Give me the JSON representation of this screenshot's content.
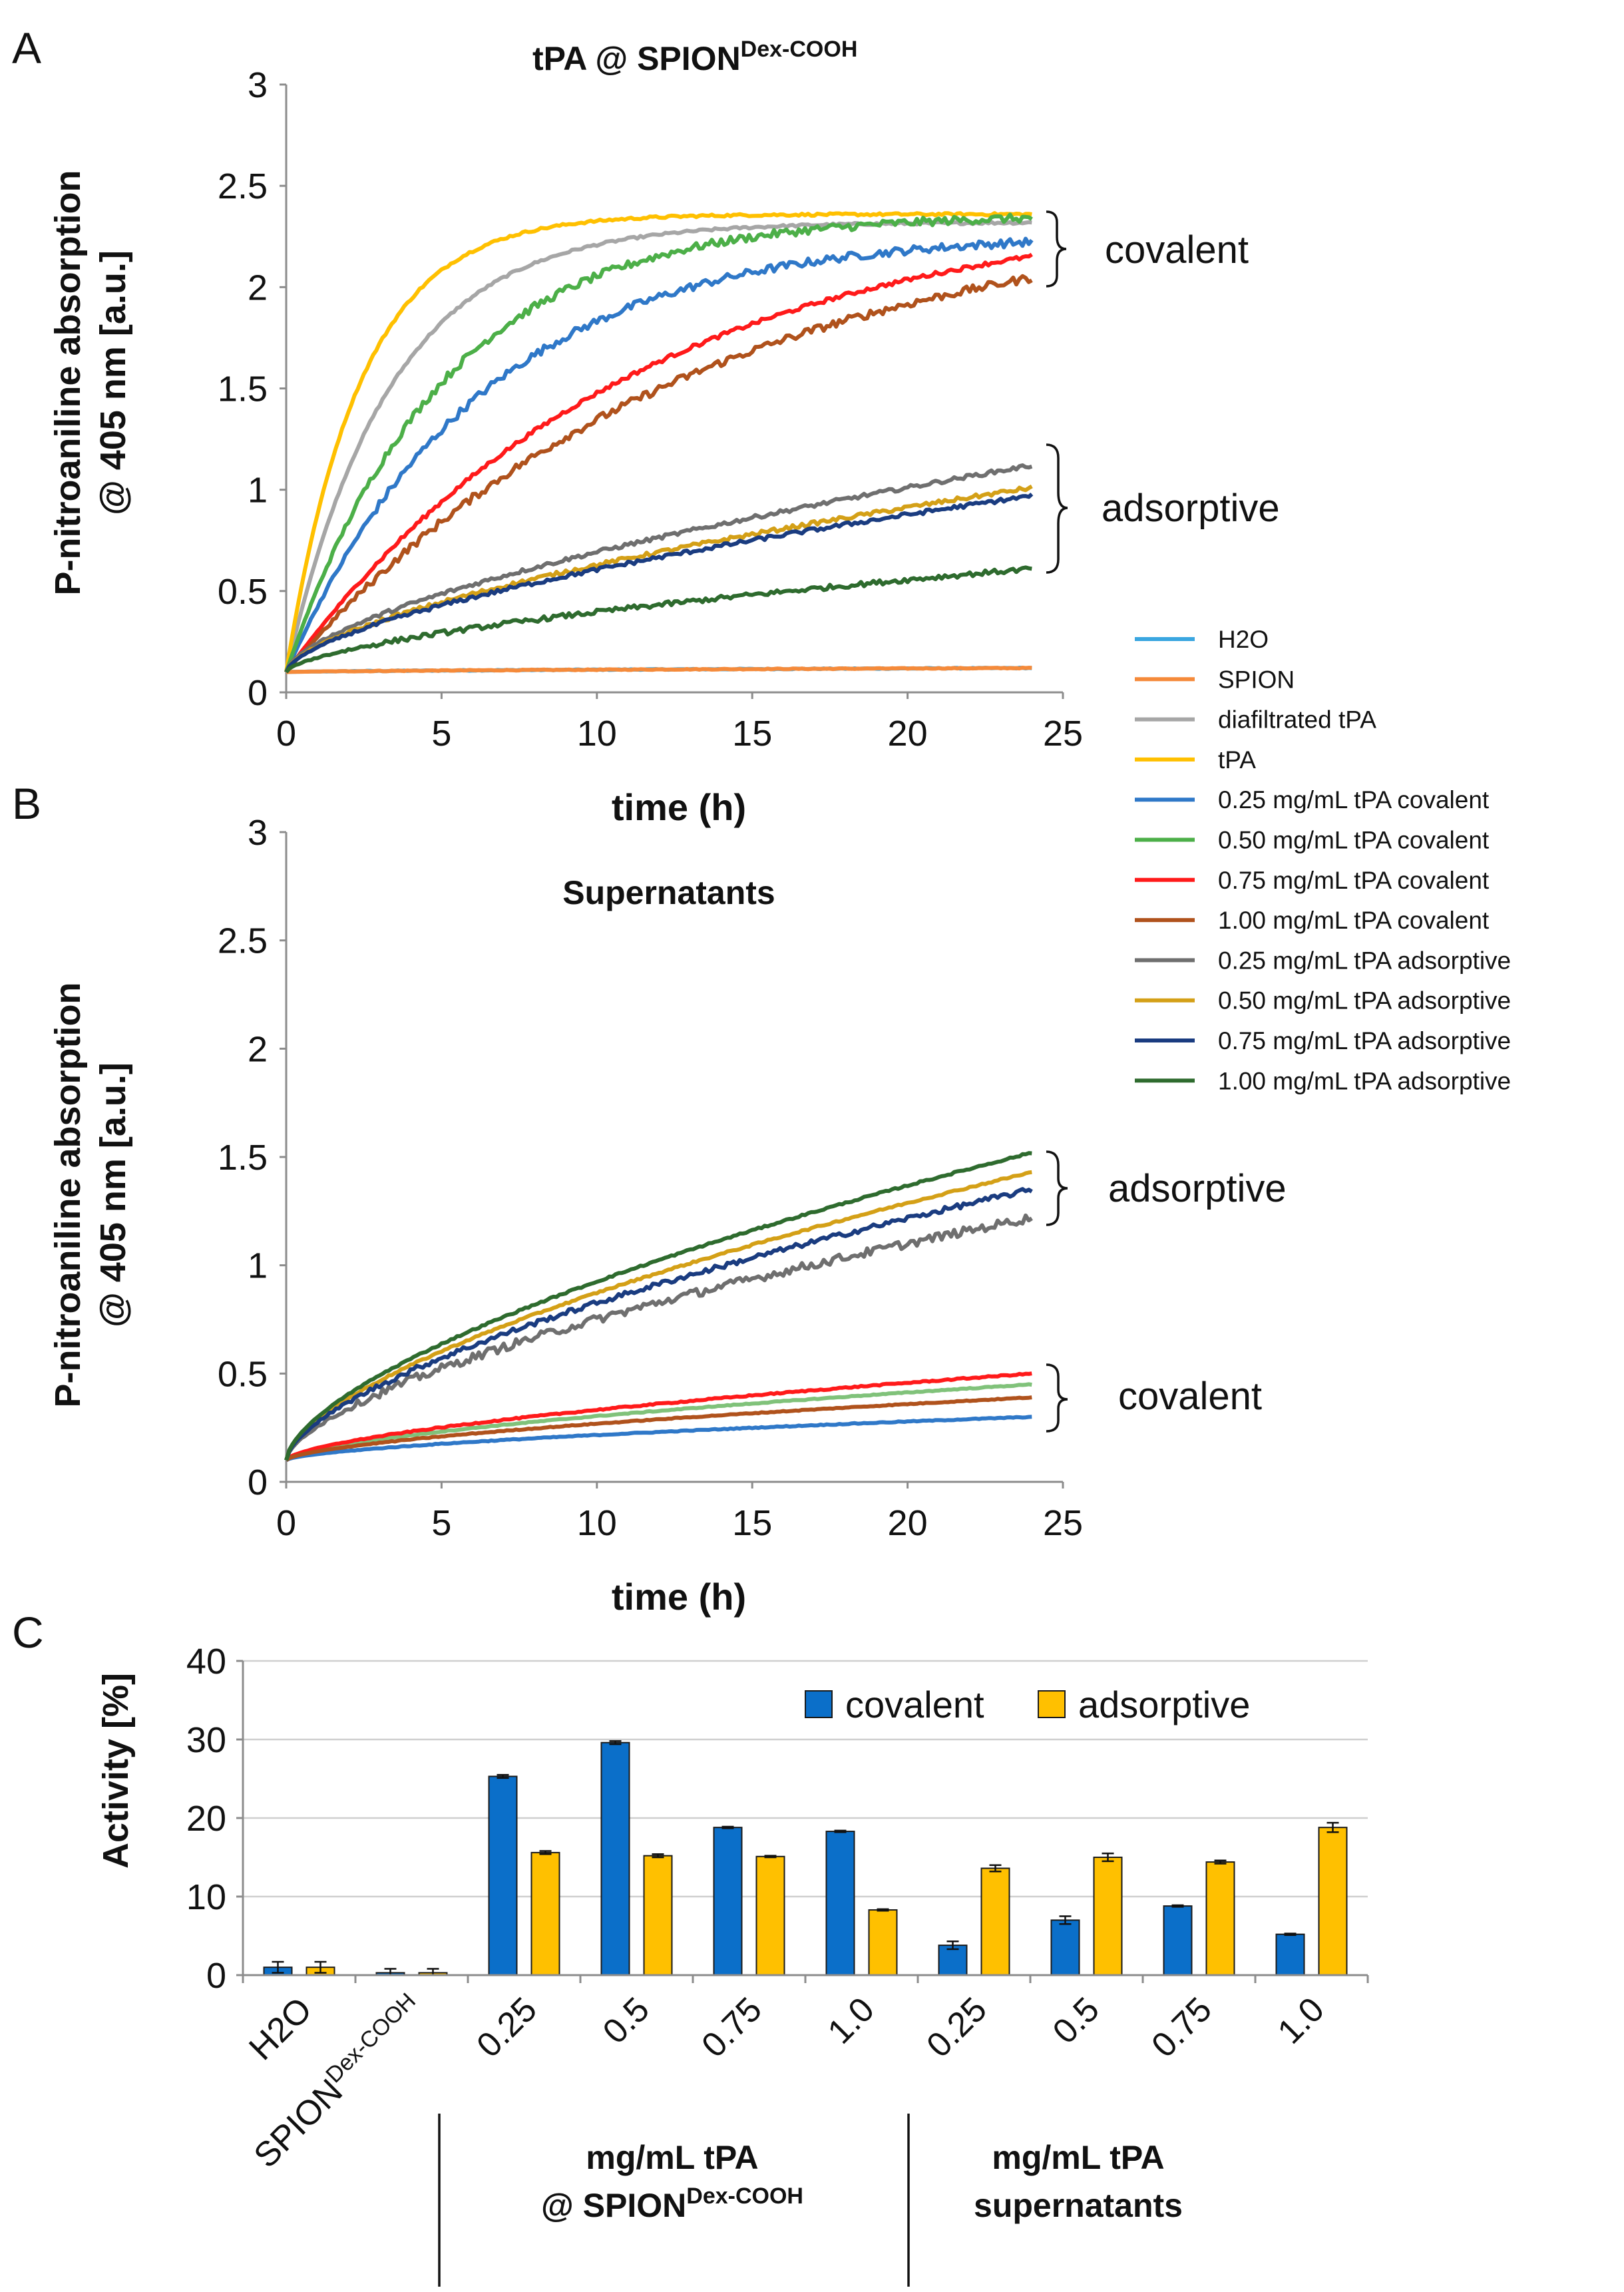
{
  "panels": {
    "A": {
      "letter": "A",
      "title": "tPA @ SPION",
      "title_sup": "Dex-COOH",
      "ylabel_line1": "P-nitroaniline absorption",
      "ylabel_line2": "@ 405 nm [a.u.]",
      "xlabel": "time (h)",
      "bracket_labels": [
        "covalent",
        "adsorptive"
      ]
    },
    "B": {
      "letter": "B",
      "title": "Supernatants",
      "ylabel_line1": "P-nitroaniline absorption",
      "ylabel_line2": "@ 405 nm [a.u.]",
      "xlabel": "time (h)",
      "bracket_labels": [
        "adsorptive",
        "covalent"
      ]
    },
    "C": {
      "letter": "C",
      "ylabel": "Activity [%]",
      "group1_line1": "mg/mL tPA",
      "group1_line2": "@ SPION",
      "group1_sup": "Dex-COOH",
      "group2_line1": "mg/mL tPA",
      "group2_line2": "supernatants",
      "spion_label": "SPION",
      "spion_sup": "Dex-COOH"
    }
  },
  "legend": [
    {
      "name": "H2O",
      "color": "#3aa6e0"
    },
    {
      "name": "SPION",
      "color": "#f58a3a"
    },
    {
      "name": "diafiltrated tPA",
      "color": "#a6a6a6"
    },
    {
      "name": "tPA",
      "color": "#ffc000"
    },
    {
      "name": "0.25 mg/mL tPA covalent",
      "color": "#2f78c8"
    },
    {
      "name": "0.50 mg/mL tPA covalent",
      "color": "#4caf48"
    },
    {
      "name": "0.75 mg/mL tPA covalent",
      "color": "#ff1a1a"
    },
    {
      "name": "1.00 mg/mL tPA covalent",
      "color": "#b0521c"
    },
    {
      "name": "0.25 mg/mL tPA adsorptive",
      "color": "#6f6f6f"
    },
    {
      "name": "0.50 mg/mL tPA adsorptive",
      "color": "#d4a017"
    },
    {
      "name": "0.75 mg/mL tPA adsorptive",
      "color": "#1a3c80"
    },
    {
      "name": "1.00 mg/mL tPA adsorptive",
      "color": "#2e6b2e"
    }
  ],
  "chart_data": [
    {
      "type": "line",
      "panel": "A",
      "title": "tPA @ SPION Dex-COOH",
      "xlabel": "time (h)",
      "ylabel": "P-nitroaniline absorption @ 405 nm [a.u.]",
      "xlim": [
        0,
        25
      ],
      "ylim": [
        0,
        3
      ],
      "xticks": [
        0,
        5,
        10,
        15,
        20,
        25
      ],
      "yticks": [
        0,
        0.5,
        1,
        1.5,
        2,
        2.5,
        3
      ],
      "tick_labels_y": [
        "0",
        "0.5",
        "1",
        "1.5",
        "2",
        "2.5",
        "3"
      ],
      "tick_labels_x": [
        "0",
        "5",
        "10",
        "15",
        "20",
        "25"
      ],
      "x_end": 24,
      "series": [
        {
          "name": "H2O",
          "start": 0.1,
          "end": 0.12,
          "k": 0,
          "noise": 0.002
        },
        {
          "name": "SPION",
          "start": 0.1,
          "end": 0.12,
          "k": 0,
          "noise": 0.002
        },
        {
          "name": "diafiltrated tPA",
          "start": 0.1,
          "plateau": 2.32,
          "k": 0.3,
          "noise": 0.006
        },
        {
          "name": "tPA",
          "start": 0.1,
          "plateau": 2.36,
          "k": 0.42,
          "noise": 0.006
        },
        {
          "name": "0.25 mg/mL tPA covalent",
          "start": 0.1,
          "plateau": 2.27,
          "k": 0.16,
          "noise": 0.02
        },
        {
          "name": "0.50 mg/mL tPA covalent",
          "start": 0.1,
          "plateau": 2.36,
          "k": 0.2,
          "noise": 0.02
        },
        {
          "name": "0.75 mg/mL tPA covalent",
          "start": 0.1,
          "plateau": 2.42,
          "k": 0.09,
          "noise": 0.01
        },
        {
          "name": "1.00 mg/mL tPA covalent",
          "start": 0.1,
          "plateau": 2.4,
          "k": 0.078,
          "noise": 0.02
        },
        {
          "name": "0.25 mg/mL tPA adsorptive",
          "start": 0.1,
          "end": 1.12,
          "k": 0,
          "noise": 0.01
        },
        {
          "name": "0.50 mg/mL tPA adsorptive",
          "start": 0.1,
          "end": 1.01,
          "k": 0,
          "noise": 0.01
        },
        {
          "name": "0.75 mg/mL tPA adsorptive",
          "start": 0.1,
          "end": 0.97,
          "k": 0,
          "noise": 0.01
        },
        {
          "name": "1.00 mg/mL tPA adsorptive",
          "start": 0.1,
          "end": 0.61,
          "k": 0,
          "noise": 0.012
        }
      ]
    },
    {
      "type": "line",
      "panel": "B",
      "title": "Supernatants",
      "xlabel": "time (h)",
      "ylabel": "P-nitroaniline absorption @ 405 nm [a.u.]",
      "xlim": [
        0,
        25
      ],
      "ylim": [
        0,
        3
      ],
      "xticks": [
        0,
        5,
        10,
        15,
        20,
        25
      ],
      "yticks": [
        0,
        0.5,
        1,
        1.5,
        2,
        2.5,
        3
      ],
      "tick_labels_y": [
        "0",
        "0.5",
        "1",
        "1.5",
        "2",
        "2.5",
        "3"
      ],
      "tick_labels_x": [
        "0",
        "5",
        "10",
        "15",
        "20",
        "25"
      ],
      "x_end": 24,
      "series": [
        {
          "name": "0.25 mg/mL tPA covalent",
          "start": 0.1,
          "end": 0.3,
          "k": 0,
          "noise": 0.002
        },
        {
          "name": "0.50 mg/mL tPA covalent",
          "start": 0.1,
          "end": 0.45,
          "k": 0,
          "noise": 0.002,
          "color_override": "#80c27a"
        },
        {
          "name": "0.75 mg/mL tPA covalent",
          "start": 0.1,
          "end": 0.5,
          "k": 0,
          "noise": 0.003
        },
        {
          "name": "1.00 mg/mL tPA covalent",
          "start": 0.1,
          "end": 0.39,
          "k": 0,
          "noise": 0.002
        },
        {
          "name": "0.25 mg/mL tPA adsorptive",
          "start": 0.1,
          "end": 1.22,
          "k": 0,
          "noise": 0.02
        },
        {
          "name": "0.50 mg/mL tPA adsorptive",
          "start": 0.1,
          "end": 1.43,
          "k": 0,
          "noise": 0.004
        },
        {
          "name": "0.75 mg/mL tPA adsorptive",
          "start": 0.1,
          "end": 1.35,
          "k": 0,
          "noise": 0.012
        },
        {
          "name": "1.00 mg/mL tPA adsorptive",
          "start": 0.1,
          "end": 1.52,
          "k": 0,
          "noise": 0.004
        }
      ]
    },
    {
      "type": "bar",
      "panel": "C",
      "ylabel": "Activity [%]",
      "ylim": [
        0,
        40
      ],
      "yticks": [
        0,
        10,
        20,
        30,
        40
      ],
      "tick_labels_y": [
        "0",
        "10",
        "20",
        "30",
        "40"
      ],
      "categories": [
        "H2O",
        "SPION Dex-COOH",
        "0.25",
        "0.5",
        "0.75",
        "1.0",
        "0.25",
        "0.5",
        "0.75",
        "1.0"
      ],
      "series": [
        {
          "name": "covalent",
          "color": "#0b6fc9",
          "values": [
            1.0,
            0.3,
            25.3,
            29.6,
            18.8,
            18.3,
            3.8,
            7.0,
            8.8,
            5.2
          ],
          "errors": [
            0.7,
            0.5,
            0.2,
            0.2,
            0.1,
            0.1,
            0.5,
            0.5,
            0.1,
            0.1
          ]
        },
        {
          "name": "adsorptive",
          "color": "#ffc000",
          "values": [
            1.0,
            0.3,
            15.6,
            15.2,
            15.1,
            8.3,
            13.6,
            15.0,
            14.4,
            18.8
          ],
          "errors": [
            0.7,
            0.5,
            0.2,
            0.2,
            0.1,
            0.1,
            0.4,
            0.5,
            0.2,
            0.6
          ]
        }
      ]
    }
  ]
}
